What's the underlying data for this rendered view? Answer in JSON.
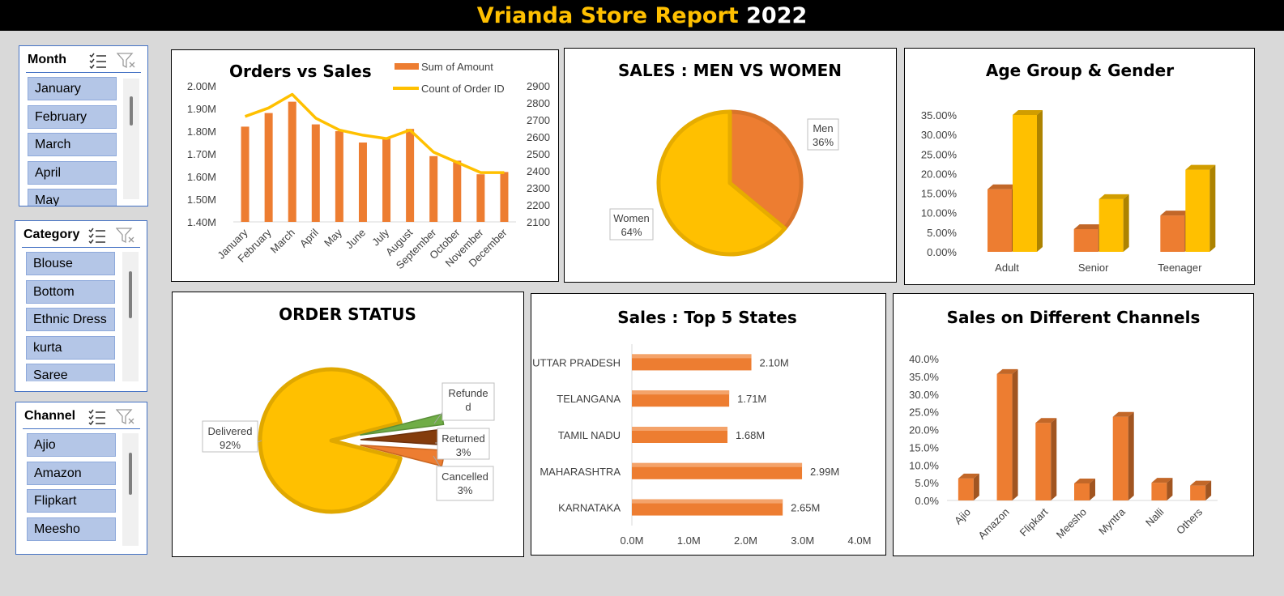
{
  "report": {
    "title_main": "Vrianda Store Report",
    "title_year": "2022"
  },
  "slicers": {
    "month": {
      "label": "Month",
      "items": [
        "January",
        "February",
        "March",
        "April",
        "May"
      ]
    },
    "category": {
      "label": "Category",
      "items": [
        "Blouse",
        "Bottom",
        "Ethnic Dress",
        "kurta",
        "Saree"
      ]
    },
    "channel": {
      "label": "Channel",
      "items": [
        "Ajio",
        "Amazon",
        "Flipkart",
        "Meesho"
      ]
    }
  },
  "icons": {
    "multiselect": "multi-select-icon",
    "clear_filter": "clear-filter-icon"
  },
  "colors": {
    "orange": "#ed7d31",
    "gold": "#ffc000",
    "green": "#70ad47",
    "brown": "#843c0c",
    "slicer_item": "#b4c6e7",
    "slicer_border": "#4472c4"
  },
  "chart_data": [
    {
      "id": "orders_vs_sales",
      "type": "bar",
      "title": "Orders vs Sales",
      "categories": [
        "January",
        "February",
        "March",
        "April",
        "May",
        "June",
        "July",
        "August",
        "September",
        "October",
        "November",
        "December"
      ],
      "series": [
        {
          "name": "Sum of Amount",
          "type": "bar",
          "axis": "left",
          "values": [
            1.82,
            1.88,
            1.93,
            1.83,
            1.8,
            1.75,
            1.77,
            1.81,
            1.69,
            1.67,
            1.61,
            1.62
          ]
        },
        {
          "name": "Count of Order ID",
          "type": "line",
          "axis": "right",
          "values": [
            2720,
            2770,
            2850,
            2710,
            2640,
            2610,
            2590,
            2640,
            2510,
            2450,
            2390,
            2390
          ]
        }
      ],
      "y_left": {
        "ticks": [
          "2.00M",
          "1.90M",
          "1.80M",
          "1.70M",
          "1.60M",
          "1.50M",
          "1.40M"
        ],
        "min": 1.4,
        "max": 2.0
      },
      "y_right": {
        "ticks": [
          "2900",
          "2800",
          "2700",
          "2600",
          "2500",
          "2400",
          "2300",
          "2200",
          "2100"
        ],
        "min": 2100,
        "max": 2900
      },
      "legend": "top-right"
    },
    {
      "id": "men_vs_women",
      "type": "pie",
      "title": "SALES : MEN VS WOMEN",
      "slices": [
        {
          "label": "Men",
          "value": 36,
          "display": "36%"
        },
        {
          "label": "Women",
          "value": 64,
          "display": "64%"
        }
      ]
    },
    {
      "id": "age_gender",
      "type": "bar",
      "title": "Age Group & Gender",
      "categories": [
        "Adult",
        "Senior",
        "Teenager"
      ],
      "series": [
        {
          "values": [
            16.0,
            5.8,
            9.3
          ]
        },
        {
          "values": [
            35.0,
            13.5,
            21.0
          ]
        }
      ],
      "y_ticks": [
        "35.00%",
        "30.00%",
        "25.00%",
        "20.00%",
        "15.00%",
        "10.00%",
        "5.00%",
        "0.00%"
      ],
      "ylim": [
        0,
        35
      ]
    },
    {
      "id": "order_status",
      "type": "pie",
      "title": "ORDER STATUS",
      "slices": [
        {
          "label": "Delivered",
          "value": 92,
          "display": "92%",
          "label_text": "Delivered\n92%"
        },
        {
          "label": "Refunded",
          "value": 2,
          "display": "",
          "label_text": "Refunde\nd"
        },
        {
          "label": "Returned",
          "value": 3,
          "display": "3%",
          "label_text": "Returned\n3%"
        },
        {
          "label": "Cancelled",
          "value": 3,
          "display": "3%",
          "label_text": "Cancelled\n3%"
        }
      ]
    },
    {
      "id": "top5_states",
      "type": "bar",
      "orientation": "horizontal",
      "title": "Sales : Top 5 States",
      "categories": [
        "UTTAR PRADESH",
        "TELANGANA",
        "TAMIL NADU",
        "MAHARASHTRA",
        "KARNATAKA"
      ],
      "values": [
        2.1,
        1.71,
        1.68,
        2.99,
        2.65
      ],
      "value_labels": [
        "2.10M",
        "1.71M",
        "1.68M",
        "2.99M",
        "2.65M"
      ],
      "x_ticks": [
        "0.0M",
        "1.0M",
        "2.0M",
        "3.0M",
        "4.0M"
      ],
      "xlim": [
        0,
        4
      ]
    },
    {
      "id": "channels",
      "type": "bar",
      "title": "Sales on Different Channels",
      "categories": [
        "Ajio",
        "Amazon",
        "Flipkart",
        "Meesho",
        "Myntra",
        "Nalli",
        "Others"
      ],
      "values": [
        6.2,
        35.7,
        21.9,
        4.8,
        23.6,
        5.0,
        4.2
      ],
      "y_ticks": [
        "40.0%",
        "35.0%",
        "30.0%",
        "25.0%",
        "20.0%",
        "15.0%",
        "10.0%",
        "5.0%",
        "0.0%"
      ],
      "ylim": [
        0,
        40
      ]
    }
  ]
}
